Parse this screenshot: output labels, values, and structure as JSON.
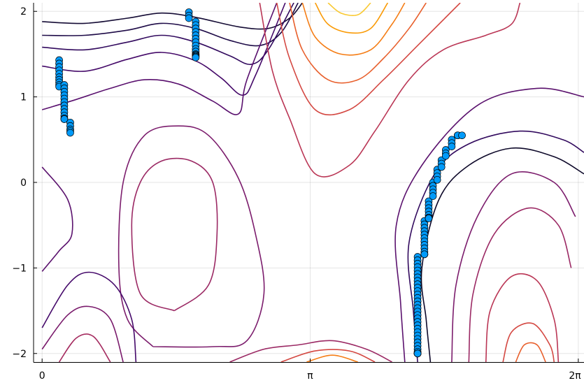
{
  "chart_data": {
    "type": "scatter",
    "title": "",
    "xlabel": "",
    "ylabel": "",
    "xlim": [
      -0.1,
      6.35
    ],
    "ylim": [
      -2.1,
      2.1
    ],
    "x_ticks": [
      {
        "value": 0,
        "label": "0"
      },
      {
        "value": 3.14159,
        "label": "π"
      },
      {
        "value": 6.28318,
        "label": "2π"
      }
    ],
    "y_ticks": [
      {
        "value": -2,
        "label": "−2"
      },
      {
        "value": -1,
        "label": "−1"
      },
      {
        "value": 0,
        "label": "0"
      },
      {
        "value": 1,
        "label": "1"
      },
      {
        "value": 2,
        "label": "2"
      }
    ],
    "grid": true,
    "legend": "none",
    "colors": {
      "background": "#ffffff",
      "points": "#009af9",
      "contour_low": "#0d0829",
      "contour_high": "#f5e85e"
    },
    "contour_lines": [
      {
        "level": "low-1",
        "color": "#140b34",
        "points": [
          [
            0,
            1.88
          ],
          [
            0.5,
            1.86
          ],
          [
            1.0,
            1.92
          ],
          [
            1.4,
            1.98
          ],
          [
            1.8,
            1.93
          ],
          [
            2.3,
            1.82
          ],
          [
            2.65,
            1.8
          ],
          [
            2.9,
            1.92
          ],
          [
            3.05,
            2.1
          ]
        ]
      },
      {
        "level": "low-2",
        "color": "#1f0c48",
        "points": [
          [
            0,
            1.72
          ],
          [
            0.5,
            1.72
          ],
          [
            1.0,
            1.78
          ],
          [
            1.4,
            1.86
          ],
          [
            1.8,
            1.8
          ],
          [
            2.2,
            1.66
          ],
          [
            2.55,
            1.6
          ],
          [
            2.8,
            1.75
          ],
          [
            3.0,
            2.1
          ]
        ]
      },
      {
        "level": "low-3",
        "color": "#320a5e",
        "points": [
          [
            0,
            1.58
          ],
          [
            0.5,
            1.55
          ],
          [
            1.0,
            1.64
          ],
          [
            1.4,
            1.72
          ],
          [
            1.8,
            1.64
          ],
          [
            2.2,
            1.48
          ],
          [
            2.45,
            1.38
          ],
          [
            2.65,
            1.55
          ],
          [
            2.95,
            2.1
          ]
        ]
      },
      {
        "level": "low-4",
        "color": "#450a69",
        "points": [
          [
            0,
            1.36
          ],
          [
            0.5,
            1.3
          ],
          [
            1.0,
            1.44
          ],
          [
            1.4,
            1.52
          ],
          [
            1.8,
            1.42
          ],
          [
            2.1,
            1.22
          ],
          [
            2.35,
            1.02
          ],
          [
            2.5,
            1.25
          ],
          [
            2.85,
            2.1
          ]
        ]
      },
      {
        "level": "low-5",
        "color": "#59106e",
        "points": [
          [
            0,
            0.85
          ],
          [
            0.4,
            0.97
          ],
          [
            0.8,
            1.1
          ],
          [
            1.2,
            1.2
          ],
          [
            1.6,
            1.15
          ],
          [
            2.0,
            0.95
          ],
          [
            2.3,
            0.8
          ],
          [
            2.4,
            1.2
          ],
          [
            2.75,
            2.1
          ]
        ]
      },
      {
        "level": "mid-1",
        "color": "#5b126e",
        "points": [
          [
            0,
            0.18
          ],
          [
            0.3,
            -0.2
          ],
          [
            0.35,
            -0.6
          ],
          [
            0.2,
            -0.8
          ],
          [
            0,
            -1.04
          ]
        ]
      },
      {
        "level": "mid-2",
        "color": "#7c1d6d",
        "points": [
          [
            1.3,
            -1.92
          ],
          [
            1.0,
            -1.6
          ],
          [
            0.9,
            -1.0
          ],
          [
            0.95,
            0.0
          ],
          [
            1.2,
            0.55
          ],
          [
            1.6,
            0.66
          ],
          [
            1.95,
            0.55
          ],
          [
            2.3,
            0.05
          ],
          [
            2.5,
            -0.6
          ],
          [
            2.6,
            -1.3
          ],
          [
            2.4,
            -1.85
          ],
          [
            2.0,
            -1.92
          ],
          [
            1.3,
            -1.92
          ]
        ]
      },
      {
        "level": "mid-3",
        "color": "#9b2964",
        "points": [
          [
            1.55,
            -1.5
          ],
          [
            1.15,
            -1.3
          ],
          [
            1.05,
            -0.5
          ],
          [
            1.15,
            0.0
          ],
          [
            1.4,
            0.25
          ],
          [
            1.75,
            0.25
          ],
          [
            2.0,
            0.0
          ],
          [
            2.05,
            -0.6
          ],
          [
            1.95,
            -1.2
          ],
          [
            1.55,
            -1.5
          ]
        ]
      },
      {
        "level": "top-1",
        "color": "#ba3655",
        "points": [
          [
            2.55,
            2.1
          ],
          [
            2.7,
            1.3
          ],
          [
            2.9,
            0.75
          ],
          [
            3.2,
            0.1
          ],
          [
            3.6,
            0.2
          ],
          [
            3.9,
            0.6
          ],
          [
            4.3,
            1.2
          ],
          [
            4.7,
            1.55
          ],
          [
            5.2,
            1.72
          ],
          [
            5.5,
            1.85
          ],
          [
            5.6,
            2.1
          ]
        ]
      },
      {
        "level": "top-2",
        "color": "#d44842",
        "points": [
          [
            2.75,
            2.1
          ],
          [
            2.9,
            1.45
          ],
          [
            3.2,
            0.85
          ],
          [
            3.6,
            0.85
          ],
          [
            4.0,
            1.2
          ],
          [
            4.4,
            1.6
          ],
          [
            4.7,
            1.9
          ],
          [
            4.9,
            2.1
          ]
        ]
      },
      {
        "level": "top-3",
        "color": "#e8602d",
        "points": [
          [
            2.9,
            2.1
          ],
          [
            3.05,
            1.55
          ],
          [
            3.35,
            1.2
          ],
          [
            3.7,
            1.2
          ],
          [
            4.0,
            1.45
          ],
          [
            4.3,
            1.8
          ],
          [
            4.5,
            2.1
          ]
        ]
      },
      {
        "level": "top-4",
        "color": "#f57d15",
        "points": [
          [
            3.05,
            2.1
          ],
          [
            3.2,
            1.7
          ],
          [
            3.5,
            1.5
          ],
          [
            3.85,
            1.55
          ],
          [
            4.1,
            1.85
          ],
          [
            4.25,
            2.1
          ]
        ]
      },
      {
        "level": "top-5",
        "color": "#fa9b07",
        "points": [
          [
            3.2,
            2.1
          ],
          [
            3.35,
            1.85
          ],
          [
            3.6,
            1.75
          ],
          [
            3.85,
            1.8
          ],
          [
            4.05,
            2.1
          ]
        ]
      },
      {
        "level": "top-6",
        "color": "#f9c932",
        "points": [
          [
            3.35,
            2.1
          ],
          [
            3.5,
            1.98
          ],
          [
            3.7,
            1.96
          ],
          [
            3.85,
            2.1
          ]
        ]
      },
      {
        "level": "bot-1",
        "color": "#45096a",
        "points": [
          [
            0,
            -1.7
          ],
          [
            0.3,
            -1.2
          ],
          [
            0.55,
            -1.05
          ],
          [
            0.85,
            -1.2
          ],
          [
            1.05,
            -1.6
          ],
          [
            1.1,
            -2.1
          ]
        ]
      },
      {
        "level": "bot-2",
        "color": "#7a1b6c",
        "points": [
          [
            0,
            -1.95
          ],
          [
            0.3,
            -1.55
          ],
          [
            0.55,
            -1.45
          ],
          [
            0.8,
            -1.6
          ],
          [
            0.95,
            -2.1
          ]
        ]
      },
      {
        "level": "bot-3",
        "color": "#a52c60",
        "points": [
          [
            0.2,
            -2.1
          ],
          [
            0.4,
            -1.82
          ],
          [
            0.6,
            -1.8
          ],
          [
            0.8,
            -2.1
          ]
        ]
      },
      {
        "level": "bc-1",
        "color": "#9b2964",
        "points": [
          [
            2.2,
            -2.1
          ],
          [
            2.6,
            -1.95
          ],
          [
            3.0,
            -1.9
          ],
          [
            3.4,
            -1.85
          ],
          [
            3.8,
            -1.95
          ],
          [
            4.1,
            -2.1
          ]
        ]
      },
      {
        "level": "bc-2",
        "color": "#d44842",
        "points": [
          [
            2.8,
            -2.1
          ],
          [
            3.2,
            -1.97
          ],
          [
            3.6,
            -1.97
          ],
          [
            3.9,
            -2.1
          ]
        ]
      },
      {
        "level": "bc-3",
        "color": "#f57d15",
        "points": [
          [
            3.1,
            -2.1
          ],
          [
            3.4,
            -2.02
          ],
          [
            3.7,
            -2.1
          ]
        ]
      },
      {
        "level": "r-1",
        "color": "#0d0829",
        "points": [
          [
            4.55,
            -2.1
          ],
          [
            4.5,
            -1.6
          ],
          [
            4.45,
            -1.0
          ],
          [
            4.65,
            -0.2
          ],
          [
            5.0,
            0.2
          ],
          [
            5.5,
            0.4
          ],
          [
            6.0,
            0.3
          ],
          [
            6.35,
            0.1
          ]
        ]
      },
      {
        "level": "r-2",
        "color": "#320a5e",
        "points": [
          [
            4.4,
            -2.1
          ],
          [
            4.35,
            -1.5
          ],
          [
            4.3,
            -0.7
          ],
          [
            4.6,
            0.1
          ],
          [
            5.0,
            0.45
          ],
          [
            5.6,
            0.6
          ],
          [
            6.1,
            0.5
          ],
          [
            6.35,
            0.35
          ]
        ]
      },
      {
        "level": "r-3",
        "color": "#5b126e",
        "points": [
          [
            4.25,
            -2.1
          ],
          [
            4.2,
            -1.4
          ],
          [
            4.15,
            -0.5
          ],
          [
            4.45,
            0.2
          ],
          [
            5.1,
            0.9
          ],
          [
            5.8,
            1.1
          ],
          [
            6.35,
            1.0
          ]
        ]
      },
      {
        "level": "r-4",
        "color": "#7c1d6d",
        "points": [
          [
            4.8,
            -2.1
          ],
          [
            4.85,
            -1.2
          ],
          [
            5.1,
            -0.4
          ],
          [
            5.5,
            0.1
          ],
          [
            6.0,
            0.0
          ],
          [
            6.25,
            -0.4
          ]
        ]
      },
      {
        "level": "r-5",
        "color": "#9b2964",
        "points": [
          [
            5.0,
            -2.1
          ],
          [
            5.05,
            -1.3
          ],
          [
            5.3,
            -0.6
          ],
          [
            5.7,
            -0.3
          ],
          [
            6.05,
            -0.5
          ],
          [
            6.2,
            -1.0
          ]
        ]
      },
      {
        "level": "r-6",
        "color": "#ba3655",
        "points": [
          [
            5.2,
            -2.1
          ],
          [
            5.25,
            -1.5
          ],
          [
            5.5,
            -1.1
          ],
          [
            5.8,
            -1.15
          ],
          [
            6.0,
            -1.6
          ],
          [
            6.05,
            -2.1
          ]
        ]
      },
      {
        "level": "r-7",
        "color": "#d44842",
        "points": [
          [
            5.4,
            -2.1
          ],
          [
            5.5,
            -1.75
          ],
          [
            5.75,
            -1.65
          ],
          [
            5.95,
            -1.9
          ],
          [
            6.0,
            -2.1
          ]
        ]
      },
      {
        "level": "r-8",
        "color": "#e8602d",
        "points": [
          [
            5.55,
            -2.1
          ],
          [
            5.65,
            -1.9
          ],
          [
            5.8,
            -1.9
          ],
          [
            5.9,
            -2.1
          ]
        ]
      }
    ],
    "series": [
      {
        "type": "scatter",
        "x": [
          0.2,
          0.2,
          0.2,
          0.2,
          0.2,
          0.2,
          0.2,
          0.2,
          0.2,
          0.2,
          0.26,
          0.26,
          0.26,
          0.26,
          0.26,
          0.26,
          0.26,
          0.26,
          0.26,
          0.26,
          0.26,
          0.26,
          0.26,
          0.33,
          0.33,
          0.33,
          0.33,
          0.33,
          1.72,
          1.72,
          1.72,
          1.8,
          1.8,
          1.8,
          1.8,
          1.8,
          1.8,
          1.8,
          1.8,
          1.8,
          1.8,
          1.8,
          1.8,
          1.8,
          1.8,
          1.8,
          4.4,
          4.4,
          4.4,
          4.4,
          4.4,
          4.4,
          4.4,
          4.4,
          4.4,
          4.4,
          4.4,
          4.4,
          4.4,
          4.4,
          4.4,
          4.4,
          4.4,
          4.4,
          4.4,
          4.4,
          4.4,
          4.4,
          4.4,
          4.4,
          4.4,
          4.4,
          4.4,
          4.4,
          4.4,
          4.4,
          4.4,
          4.4,
          4.4,
          4.4,
          4.4,
          4.4,
          4.4,
          4.48,
          4.48,
          4.48,
          4.48,
          4.48,
          4.48,
          4.48,
          4.48,
          4.48,
          4.48,
          4.48,
          4.48,
          4.48,
          4.53,
          4.53,
          4.53,
          4.53,
          4.53,
          4.53,
          4.53,
          4.53,
          4.58,
          4.58,
          4.58,
          4.58,
          4.58,
          4.63,
          4.63,
          4.63,
          4.63,
          4.68,
          4.68,
          4.68,
          4.73,
          4.73,
          4.73,
          4.8,
          4.8,
          4.8,
          4.87,
          4.87,
          4.87,
          4.92
        ],
        "y": [
          1.43,
          1.39,
          1.35,
          1.31,
          1.27,
          1.23,
          1.2,
          1.17,
          1.14,
          1.12,
          1.14,
          1.1,
          1.06,
          1.02,
          0.98,
          0.94,
          0.9,
          0.86,
          0.82,
          0.78,
          0.75,
          0.74,
          0.74,
          0.7,
          0.66,
          0.62,
          0.6,
          0.58,
          1.99,
          1.95,
          1.92,
          1.88,
          1.84,
          1.8,
          1.76,
          1.72,
          1.68,
          1.64,
          1.6,
          1.56,
          1.53,
          1.5,
          1.49,
          1.48,
          1.47,
          1.46,
          -0.87,
          -0.91,
          -0.95,
          -0.99,
          -1.03,
          -1.07,
          -1.11,
          -1.15,
          -1.19,
          -1.23,
          -1.27,
          -1.31,
          -1.35,
          -1.39,
          -1.43,
          -1.47,
          -1.51,
          -1.55,
          -1.59,
          -1.63,
          -1.67,
          -1.71,
          -1.75,
          -1.79,
          -1.83,
          -1.87,
          -1.91,
          -1.95,
          -1.98,
          -2.0,
          -2.0,
          -2.0,
          -2.0,
          -2.0,
          -2.0,
          -2.0,
          -2.0,
          -0.45,
          -0.49,
          -0.53,
          -0.57,
          -0.61,
          -0.65,
          -0.69,
          -0.73,
          -0.77,
          -0.81,
          -0.84,
          -0.84,
          -0.84,
          -0.22,
          -0.26,
          -0.3,
          -0.34,
          -0.38,
          -0.41,
          -0.42,
          -0.42,
          0.0,
          -0.04,
          -0.08,
          -0.12,
          -0.16,
          0.15,
          0.11,
          0.07,
          0.03,
          0.26,
          0.22,
          0.18,
          0.38,
          0.34,
          0.31,
          0.5,
          0.46,
          0.42,
          0.55,
          0.55,
          0.55,
          0.55
        ]
      }
    ]
  }
}
